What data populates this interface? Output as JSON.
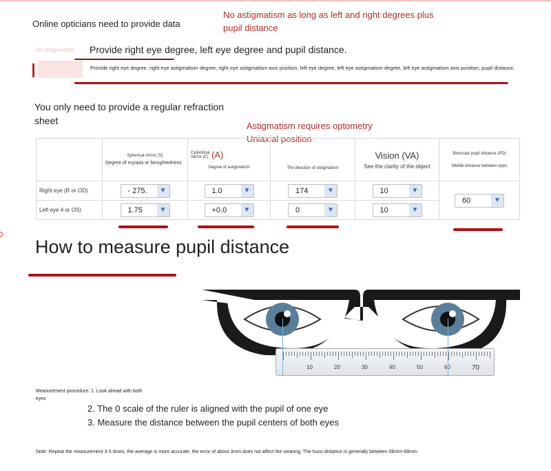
{
  "header": {
    "left": "Online opticians need to provide data",
    "right": "No astigmatism as long as left and right degrees plus pupil distance"
  },
  "section1": {
    "faded_tag": "No astigmatism",
    "title": "Provide right eye degree, left eye degree and pupil distance.",
    "detail": "Provide right eye degree, right eye astigmatism degree, right eye astigmatism axis position, left eye degree, left eye astigmatism degree, left eye astigmatism axis position, pupil distance."
  },
  "section2": {
    "title": "You only need to provide a regular refraction sheet",
    "note": "Astigmatism requires optometry Uniaxial position"
  },
  "table": {
    "headers": [
      {
        "small": "Spherical mirror (S)",
        "sub": "Degree of myopia or farsightedness"
      },
      {
        "small": "Cylindrical mirror (C)",
        "big": "(A)",
        "sub": "Degree of astigmatism"
      },
      {
        "sub": "The direction of astigmatism"
      },
      {
        "big": "Vision (VA)",
        "sub": "See the clarity of the object"
      },
      {
        "small": "Binocular pupil distance (PD)",
        "sub": "Middle distance between eyes"
      }
    ],
    "rows": [
      {
        "label": "Right eye (R or OD)",
        "values": [
          "- 275.",
          "1.0",
          "174",
          "10"
        ]
      },
      {
        "label": "Left eye 4 or OS)",
        "values": [
          "1.75",
          "+0.0",
          "0",
          "10"
        ]
      }
    ],
    "pd": "60"
  },
  "measure": {
    "title": "How to measure pupil distance",
    "ruler_labels": [
      "10",
      "20",
      "30",
      "40",
      "50",
      "60",
      "70"
    ],
    "step1": "Measurement procedure: 1. Look ahead with both eyes",
    "step2": "2. The 0 scale of the ruler is aligned with the pupil of one eye",
    "step3": "3. Measure the distance between the pupil centers of both eyes",
    "note": "Note: Repeat the measurement 3-5 times, the average is more accurate, the error of about 3mm does not affect the wearing; The huso distance is generally between 58mm-68mm"
  },
  "colors": {
    "accent": "#b0101a",
    "chevron": "#3a6fc0"
  }
}
